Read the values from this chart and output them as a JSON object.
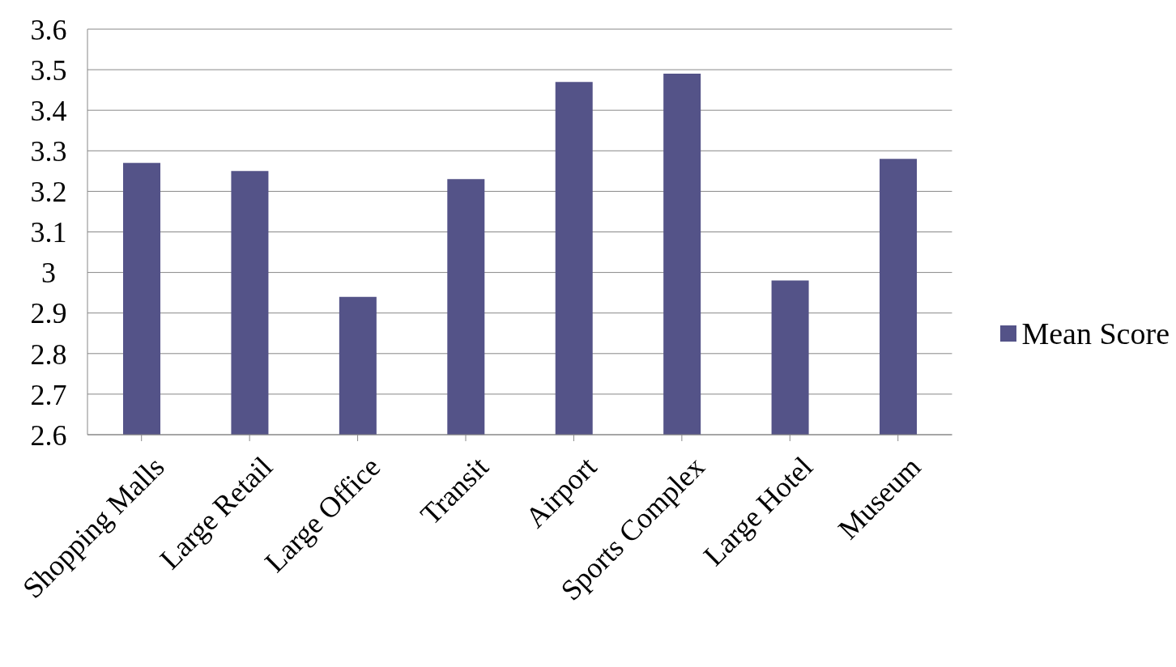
{
  "chart_data": {
    "type": "bar",
    "categories": [
      "Shopping Malls",
      "Large Retail",
      "Large Office",
      "Transit",
      "Airport",
      "Sports Complex",
      "Large Hotel",
      "Museum"
    ],
    "series": [
      {
        "name": "Mean Score",
        "color": "#545388",
        "values": [
          3.27,
          3.25,
          2.94,
          3.23,
          3.47,
          3.49,
          2.98,
          3.28
        ]
      }
    ],
    "ylim": [
      2.6,
      3.6
    ],
    "yticks": [
      2.6,
      2.7,
      2.8,
      2.9,
      {
        "value": 3,
        "label": "3"
      },
      3.1,
      3.2,
      3.3,
      3.4,
      3.5,
      3.6
    ],
    "grid": "y",
    "legend": "right"
  }
}
